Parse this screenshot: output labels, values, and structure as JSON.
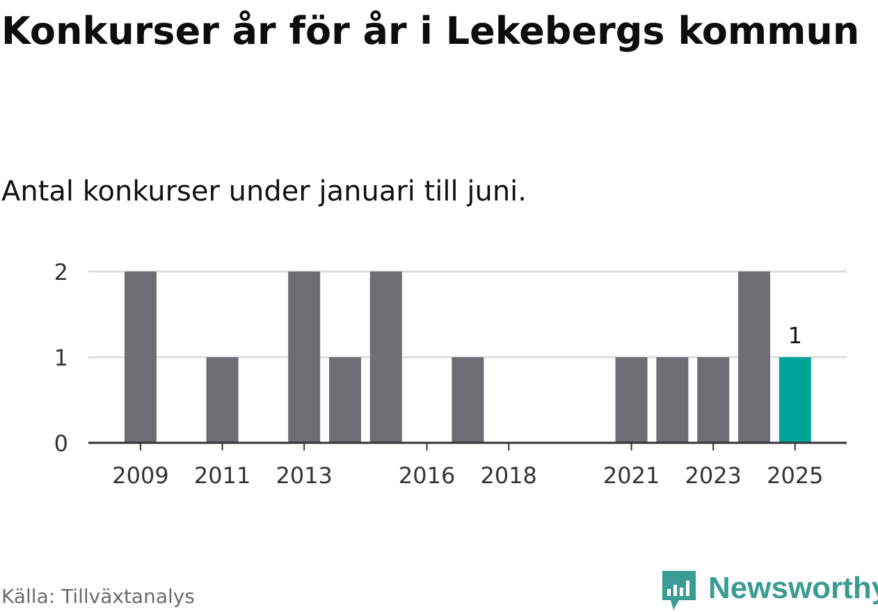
{
  "title": "Konkurser år för år i Lekebergs kommun",
  "subtitle": "Antal konkurser under januari till juni.",
  "source": "Källa: Tillväxtanalys",
  "brand": {
    "name": "Newsworthy",
    "color": "#3a9c94"
  },
  "colors": {
    "bar": "#6e6d73",
    "highlight": "#00a49a",
    "grid": "#dddddd",
    "axis": "#333333"
  },
  "chart_data": {
    "type": "bar",
    "x": [
      2009,
      2010,
      2011,
      2012,
      2013,
      2014,
      2015,
      2016,
      2017,
      2018,
      2019,
      2020,
      2021,
      2022,
      2023,
      2024,
      2025
    ],
    "values": [
      2,
      0,
      1,
      0,
      2,
      1,
      2,
      0,
      1,
      0,
      0,
      0,
      1,
      1,
      1,
      2,
      1
    ],
    "highlight": 2025,
    "annotations": [
      {
        "x": 2025,
        "label": "1"
      }
    ],
    "xticks": [
      "2009",
      "2011",
      "2013",
      "2016",
      "2018",
      "2021",
      "2023",
      "2025"
    ],
    "yticks": [
      "0",
      "1",
      "2"
    ],
    "ylim": [
      0,
      2
    ],
    "grid": true
  }
}
